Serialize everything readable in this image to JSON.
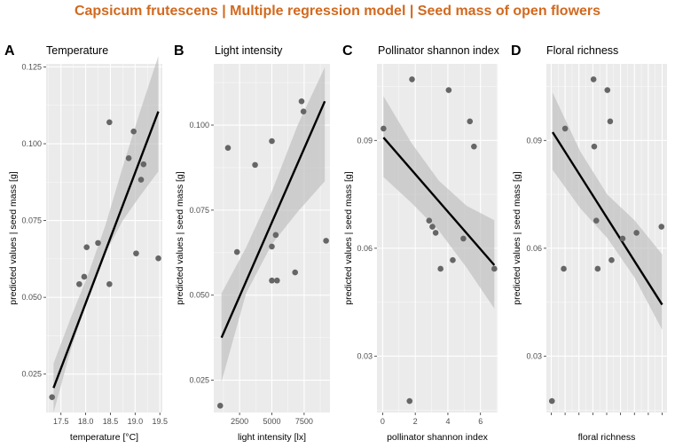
{
  "title": "Capsicum frutescens | Multiple regression model | Seed mass of open flowers",
  "colors": {
    "title": "#d2691e",
    "panel_bg": "#ebebeb",
    "grid": "#ffffff",
    "points": "#666666",
    "line": "#000000",
    "ribbon": "#bdbdbd"
  },
  "chart_data": [
    {
      "type": "scatter",
      "letter": "A",
      "title": "Temperature",
      "xlabel": "temperature [°C]",
      "ylabel": "predicted values | seed mass [g]",
      "xlim": [
        17.2,
        19.55
      ],
      "ylim": [
        0.0125,
        0.126
      ],
      "xticks": [
        17.5,
        18.0,
        18.5,
        19.0,
        19.5
      ],
      "xtick_labels": [
        "17.5",
        "18.0",
        "18.5",
        "19.0",
        "19.5"
      ],
      "yticks": [
        0.025,
        0.05,
        0.075,
        0.1,
        0.125
      ],
      "ytick_labels": [
        "0.025",
        "0.050",
        "0.075",
        "0.100",
        "0.125"
      ],
      "points": [
        [
          17.32,
          0.0175
        ],
        [
          17.87,
          0.0543
        ],
        [
          17.97,
          0.0567
        ],
        [
          18.02,
          0.0663
        ],
        [
          18.25,
          0.0677
        ],
        [
          18.48,
          0.107
        ],
        [
          18.48,
          0.0543
        ],
        [
          18.87,
          0.0953
        ],
        [
          18.97,
          0.104
        ],
        [
          19.02,
          0.0643
        ],
        [
          19.12,
          0.0883
        ],
        [
          19.17,
          0.0933
        ],
        [
          19.47,
          0.0627
        ]
      ],
      "fit": [
        [
          17.35,
          0.0205
        ],
        [
          19.47,
          0.1105
        ]
      ],
      "band": {
        "x": [
          17.35,
          17.7,
          18.05,
          18.4,
          18.75,
          19.1,
          19.47
        ],
        "lower": [
          0.0125,
          0.033,
          0.05,
          0.0645,
          0.075,
          0.083,
          0.091
        ],
        "upper": [
          0.0285,
          0.0434,
          0.0575,
          0.0735,
          0.0925,
          0.1105,
          0.1285
        ]
      }
    },
    {
      "type": "scatter",
      "letter": "B",
      "title": "Light intensity",
      "xlabel": "light intensity [lx]",
      "ylabel": "predicted values | seed mass [g]",
      "xlim": [
        500,
        9500
      ],
      "ylim": [
        0.0155,
        0.118
      ],
      "xticks": [
        2500,
        5000,
        7500
      ],
      "xtick_labels": [
        "2500",
        "5000",
        "7500"
      ],
      "yticks": [
        0.025,
        0.05,
        0.075,
        0.1
      ],
      "ytick_labels": [
        "0.025",
        "0.050",
        "0.075",
        "0.100"
      ],
      "points": [
        [
          1000,
          0.0175
        ],
        [
          1600,
          0.0933
        ],
        [
          2300,
          0.0627
        ],
        [
          3700,
          0.0883
        ],
        [
          5000,
          0.0953
        ],
        [
          5000,
          0.0643
        ],
        [
          5000,
          0.0543
        ],
        [
          5300,
          0.0677
        ],
        [
          5400,
          0.0543
        ],
        [
          6800,
          0.0567
        ],
        [
          7300,
          0.107
        ],
        [
          7450,
          0.104
        ],
        [
          9200,
          0.066
        ]
      ],
      "fit": [
        [
          1100,
          0.0375
        ],
        [
          9100,
          0.107
        ]
      ],
      "band": {
        "x": [
          1100,
          3000,
          5000,
          7000,
          9100
        ],
        "lower": [
          0.0245,
          0.0505,
          0.065,
          0.0745,
          0.0835
        ],
        "upper": [
          0.0505,
          0.064,
          0.0805,
          0.1,
          0.117
        ]
      }
    },
    {
      "type": "scatter",
      "letter": "C",
      "title": "Pollinator shannon index",
      "xlabel": "pollinator shannon index",
      "ylabel": "predicted values | seed mass [g]",
      "xlim": [
        -0.35,
        7.05
      ],
      "ylim": [
        0.0143,
        0.1113
      ],
      "xticks": [
        0,
        2,
        4,
        6
      ],
      "xtick_labels": [
        "0",
        "2",
        "4",
        "6"
      ],
      "yticks": [
        0.03,
        0.06,
        0.09
      ],
      "ytick_labels": [
        "0.03",
        "0.06",
        "0.09"
      ],
      "points": [
        [
          0.05,
          0.0933
        ],
        [
          1.65,
          0.0175
        ],
        [
          1.8,
          0.107
        ],
        [
          2.85,
          0.0677
        ],
        [
          3.05,
          0.066
        ],
        [
          3.25,
          0.0643
        ],
        [
          3.55,
          0.0543
        ],
        [
          4.05,
          0.104
        ],
        [
          4.3,
          0.0567
        ],
        [
          4.95,
          0.0627
        ],
        [
          5.35,
          0.0953
        ],
        [
          5.6,
          0.0883
        ],
        [
          6.85,
          0.0543
        ]
      ],
      "fit": [
        [
          0.05,
          0.0908
        ],
        [
          6.85,
          0.0553
        ]
      ],
      "band": {
        "x": [
          0.05,
          1.75,
          3.45,
          5.15,
          6.85
        ],
        "lower": [
          0.0798,
          0.0727,
          0.0649,
          0.0546,
          0.0432
        ],
        "upper": [
          0.1023,
          0.0894,
          0.0788,
          0.0718,
          0.0678
        ]
      }
    },
    {
      "type": "scatter",
      "letter": "D",
      "title": "Floral richness",
      "xlabel": "floral richness",
      "ylabel": "predicted values | seed mass [g]",
      "xlim": [
        0.65,
        9.35
      ],
      "ylim": [
        0.0143,
        0.1113
      ],
      "xticks": [
        1,
        2,
        3,
        4,
        5,
        6,
        7,
        8,
        9
      ],
      "xtick_labels": [
        "",
        "",
        "",
        "",
        "",
        "",
        "",
        "",
        ""
      ],
      "yticks": [
        0.03,
        0.06,
        0.09
      ],
      "ytick_labels": [
        "0.03",
        "0.06",
        "0.09"
      ],
      "points": [
        [
          1.05,
          0.0175
        ],
        [
          1.9,
          0.0543
        ],
        [
          2.0,
          0.0933
        ],
        [
          4.05,
          0.107
        ],
        [
          4.1,
          0.0883
        ],
        [
          4.25,
          0.0677
        ],
        [
          4.35,
          0.0543
        ],
        [
          5.05,
          0.104
        ],
        [
          5.25,
          0.0953
        ],
        [
          5.35,
          0.0567
        ],
        [
          6.15,
          0.0627
        ],
        [
          7.15,
          0.0643
        ],
        [
          8.95,
          0.066
        ]
      ],
      "fit": [
        [
          1.1,
          0.0923
        ],
        [
          9.0,
          0.0443
        ]
      ],
      "band": {
        "x": [
          1.1,
          3.1,
          5.05,
          7.0,
          9.0
        ],
        "lower": [
          0.0818,
          0.0711,
          0.0628,
          0.0519,
          0.0373
        ],
        "upper": [
          0.1033,
          0.0869,
          0.0749,
          0.0678,
          0.0583
        ]
      }
    }
  ]
}
